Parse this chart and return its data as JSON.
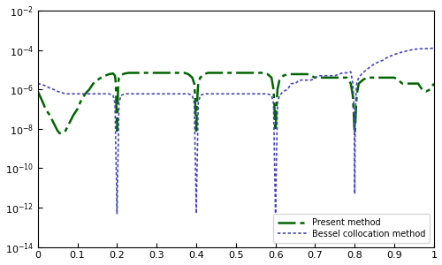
{
  "xlim": [
    0,
    1
  ],
  "ylim_log": [
    -14,
    -2
  ],
  "xticks": [
    0,
    0.1,
    0.2,
    0.3,
    0.4,
    0.5,
    0.6,
    0.7,
    0.8,
    0.9,
    1
  ],
  "xtick_labels": [
    "0",
    "0.1",
    "0.2",
    "0.3",
    "0.4",
    "0.5",
    "0.6",
    "0.7",
    "0.8",
    "0.9",
    "1"
  ],
  "ytick_exponents": [
    -14,
    -12,
    -10,
    -8,
    -6,
    -4,
    -2
  ],
  "legend_labels": [
    "Present method",
    "Bessel collocation method"
  ],
  "present_color": "#006400",
  "bessel_color": "#4444bb",
  "background": "#ffffff",
  "present_x": [
    0.0,
    0.01,
    0.02,
    0.03,
    0.04,
    0.05,
    0.055,
    0.06,
    0.07,
    0.08,
    0.09,
    0.1,
    0.11,
    0.12,
    0.13,
    0.14,
    0.15,
    0.16,
    0.17,
    0.18,
    0.19,
    0.195,
    0.197,
    0.199,
    0.2,
    0.201,
    0.203,
    0.205,
    0.21,
    0.22,
    0.23,
    0.24,
    0.25,
    0.26,
    0.27,
    0.28,
    0.29,
    0.3,
    0.31,
    0.32,
    0.33,
    0.34,
    0.35,
    0.36,
    0.37,
    0.38,
    0.39,
    0.395,
    0.397,
    0.399,
    0.4,
    0.401,
    0.403,
    0.405,
    0.41,
    0.42,
    0.43,
    0.44,
    0.45,
    0.46,
    0.47,
    0.48,
    0.49,
    0.5,
    0.51,
    0.52,
    0.53,
    0.54,
    0.55,
    0.56,
    0.57,
    0.58,
    0.59,
    0.595,
    0.597,
    0.599,
    0.6,
    0.601,
    0.603,
    0.605,
    0.61,
    0.62,
    0.63,
    0.64,
    0.65,
    0.66,
    0.67,
    0.68,
    0.69,
    0.7,
    0.71,
    0.72,
    0.73,
    0.74,
    0.75,
    0.76,
    0.77,
    0.78,
    0.79,
    0.795,
    0.797,
    0.799,
    0.8,
    0.801,
    0.803,
    0.805,
    0.81,
    0.82,
    0.83,
    0.84,
    0.85,
    0.86,
    0.87,
    0.88,
    0.89,
    0.9,
    0.91,
    0.92,
    0.93,
    0.94,
    0.95,
    0.96,
    0.97,
    0.98,
    0.99,
    1.0
  ],
  "present_y": [
    8e-07,
    3e-07,
    1e-07,
    5e-08,
    2e-08,
    8e-09,
    6e-09,
    6e-09,
    8e-09,
    2e-08,
    5e-08,
    1e-07,
    3e-07,
    6e-07,
    1e-06,
    2e-06,
    3e-06,
    4e-06,
    5e-06,
    6e-06,
    6.5e-06,
    5e-06,
    2e-06,
    5e-08,
    8e-09,
    5e-08,
    2e-06,
    4e-06,
    5.5e-06,
    6.5e-06,
    7e-06,
    7e-06,
    7e-06,
    7e-06,
    7e-06,
    7e-06,
    7e-06,
    7e-06,
    7e-06,
    7e-06,
    7e-06,
    7e-06,
    7e-06,
    7e-06,
    7e-06,
    6e-06,
    4e-06,
    2e-06,
    5e-07,
    3e-08,
    8e-09,
    3e-08,
    5e-07,
    2e-06,
    4e-06,
    6e-06,
    7e-06,
    7e-06,
    7e-06,
    7e-06,
    7e-06,
    7e-06,
    7e-06,
    7e-06,
    7e-06,
    7e-06,
    7e-06,
    7e-06,
    7e-06,
    7e-06,
    7e-06,
    6e-06,
    4e-06,
    1e-06,
    2e-07,
    2e-08,
    8e-09,
    2e-08,
    2e-07,
    1e-06,
    3e-06,
    5e-06,
    6e-06,
    6e-06,
    6e-06,
    6e-06,
    6e-06,
    6e-06,
    5e-06,
    4e-06,
    4e-06,
    4e-06,
    4e-06,
    4e-06,
    4e-06,
    4e-06,
    4e-06,
    4e-06,
    2e-06,
    5e-07,
    1e-07,
    1e-08,
    6e-09,
    1e-08,
    1e-07,
    5e-07,
    2e-06,
    3e-06,
    4e-06,
    4e-06,
    4e-06,
    4e-06,
    4e-06,
    4e-06,
    4e-06,
    4e-06,
    3e-06,
    2e-06,
    2e-06,
    2e-06,
    2e-06,
    2e-06,
    1e-06,
    8e-07,
    1e-06,
    2e-06
  ],
  "bessel_x": [
    0.0,
    0.01,
    0.02,
    0.03,
    0.04,
    0.05,
    0.06,
    0.07,
    0.08,
    0.09,
    0.1,
    0.11,
    0.12,
    0.13,
    0.14,
    0.15,
    0.16,
    0.17,
    0.18,
    0.19,
    0.195,
    0.197,
    0.199,
    0.2,
    0.201,
    0.203,
    0.205,
    0.21,
    0.22,
    0.23,
    0.24,
    0.25,
    0.26,
    0.27,
    0.28,
    0.29,
    0.3,
    0.31,
    0.32,
    0.33,
    0.34,
    0.35,
    0.36,
    0.37,
    0.38,
    0.39,
    0.395,
    0.397,
    0.399,
    0.4,
    0.401,
    0.403,
    0.405,
    0.41,
    0.42,
    0.43,
    0.44,
    0.45,
    0.46,
    0.47,
    0.48,
    0.49,
    0.5,
    0.51,
    0.52,
    0.53,
    0.54,
    0.55,
    0.56,
    0.57,
    0.58,
    0.59,
    0.595,
    0.597,
    0.599,
    0.6,
    0.601,
    0.603,
    0.605,
    0.61,
    0.62,
    0.63,
    0.64,
    0.65,
    0.66,
    0.67,
    0.68,
    0.69,
    0.7,
    0.71,
    0.72,
    0.73,
    0.74,
    0.75,
    0.76,
    0.77,
    0.78,
    0.79,
    0.795,
    0.797,
    0.799,
    0.8,
    0.801,
    0.803,
    0.805,
    0.81,
    0.82,
    0.83,
    0.84,
    0.85,
    0.86,
    0.87,
    0.88,
    0.89,
    0.9,
    0.91,
    0.92,
    0.93,
    0.94,
    0.95,
    0.96,
    0.97,
    0.98,
    0.99,
    1.0
  ],
  "bessel_y": [
    2e-06,
    1.8e-06,
    1.5e-06,
    1.2e-06,
    1e-06,
    8e-07,
    7e-07,
    6e-07,
    6e-07,
    6e-07,
    6e-07,
    6e-07,
    6e-07,
    6e-07,
    6e-07,
    6e-07,
    6e-07,
    6e-07,
    6e-07,
    5e-07,
    2e-07,
    1e-09,
    1e-11,
    5e-13,
    1e-11,
    1e-09,
    2e-07,
    5e-07,
    6e-07,
    6e-07,
    6e-07,
    6e-07,
    6e-07,
    6e-07,
    6e-07,
    6e-07,
    6e-07,
    6e-07,
    6e-07,
    6e-07,
    6e-07,
    6e-07,
    6e-07,
    6e-07,
    6e-07,
    5e-07,
    2e-07,
    1e-09,
    1e-11,
    5e-13,
    1e-11,
    1e-09,
    2e-07,
    5e-07,
    6e-07,
    6e-07,
    6e-07,
    6e-07,
    6e-07,
    6e-07,
    6e-07,
    6e-07,
    6e-07,
    6e-07,
    6e-07,
    6e-07,
    6e-07,
    6e-07,
    6e-07,
    6e-07,
    6e-07,
    5e-07,
    2e-07,
    1e-09,
    5e-12,
    5e-13,
    5e-12,
    1e-09,
    2e-07,
    5e-07,
    8e-07,
    1e-06,
    2e-06,
    2e-06,
    3e-06,
    3e-06,
    3e-06,
    3e-06,
    4e-06,
    5e-06,
    5e-06,
    5e-06,
    5e-06,
    5e-06,
    6e-06,
    7e-06,
    7e-06,
    8e-06,
    2e-06,
    5e-07,
    1e-08,
    5e-12,
    1e-08,
    5e-07,
    2e-06,
    4e-06,
    7e-06,
    1e-05,
    1.5e-05,
    2e-05,
    2.5e-05,
    3e-05,
    4e-05,
    5e-05,
    6e-05,
    7e-05,
    8e-05,
    9e-05,
    0.0001,
    0.00011,
    0.000115,
    0.000118,
    0.00012,
    0.000122,
    0.000125
  ]
}
